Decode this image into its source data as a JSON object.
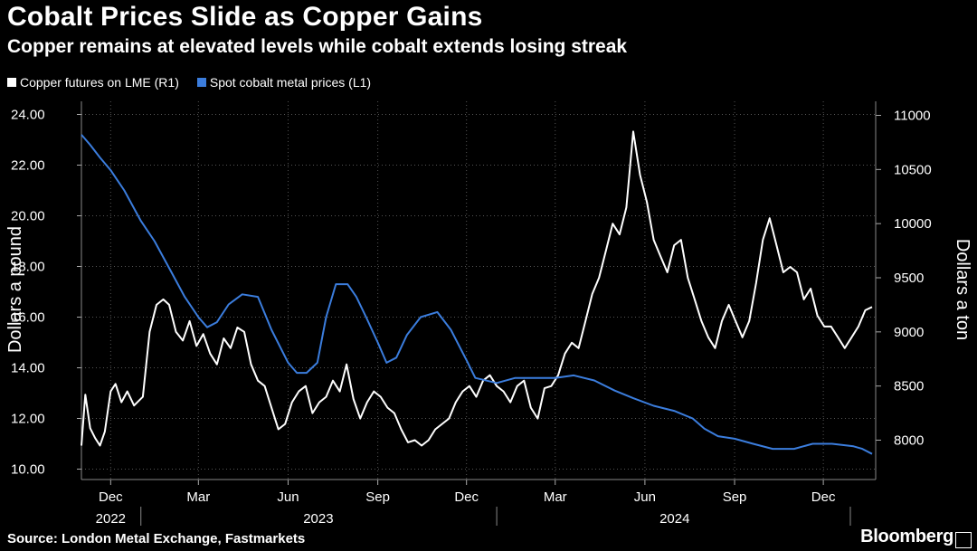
{
  "chart_data": {
    "type": "line",
    "title": "Cobalt Prices Slide as Copper Gains",
    "subtitle": "Copper remains at elevated levels while cobalt extends losing streak",
    "source": "Source: London Metal Exchange, Fastmarkets",
    "brand": "Bloomberg",
    "ylabel_left": "Dollars a pound",
    "ylabel_right": "Dollars a ton",
    "ylim_left": [
      10,
      24
    ],
    "yticks_left": [
      "10.00",
      "12.00",
      "14.00",
      "16.00",
      "18.00",
      "20.00",
      "22.00",
      "24.00"
    ],
    "ylim_right": [
      7800,
      11100
    ],
    "yticks_right": [
      "8000",
      "8500",
      "9000",
      "9500",
      "10000",
      "10500",
      "11000"
    ],
    "x_month_ticks": [
      {
        "label": "Dec",
        "date": "2022-12-01"
      },
      {
        "label": "Mar",
        "date": "2023-03-01"
      },
      {
        "label": "Jun",
        "date": "2023-06-01"
      },
      {
        "label": "Sep",
        "date": "2023-09-01"
      },
      {
        "label": "Dec",
        "date": "2023-12-01"
      },
      {
        "label": "Mar",
        "date": "2024-03-01"
      },
      {
        "label": "Jun",
        "date": "2024-06-01"
      },
      {
        "label": "Sep",
        "date": "2024-09-01"
      },
      {
        "label": "Dec",
        "date": "2024-12-01"
      }
    ],
    "x_year_ticks": [
      {
        "label": "2022",
        "date": "2022-11-01",
        "end": "2022-12-31"
      },
      {
        "label": "2023",
        "date": "2023-01-01",
        "end": "2023-12-31"
      },
      {
        "label": "2024",
        "date": "2024-01-01",
        "end": "2024-12-31"
      }
    ],
    "x_range": [
      "2022-11-01",
      "2025-01-20"
    ],
    "grid": true,
    "legend_position": "top-left",
    "series": [
      {
        "name": "Copper futures on LME (R1)",
        "axis": "right",
        "color": "#ffffff",
        "points": [
          [
            "2022-11-01",
            7950
          ],
          [
            "2022-11-05",
            8420
          ],
          [
            "2022-11-10",
            8110
          ],
          [
            "2022-11-15",
            8020
          ],
          [
            "2022-11-20",
            7950
          ],
          [
            "2022-11-25",
            8080
          ],
          [
            "2022-12-01",
            8450
          ],
          [
            "2022-12-06",
            8520
          ],
          [
            "2022-12-12",
            8350
          ],
          [
            "2022-12-18",
            8450
          ],
          [
            "2022-12-25",
            8320
          ],
          [
            "2023-01-03",
            8400
          ],
          [
            "2023-01-10",
            9000
          ],
          [
            "2023-01-17",
            9250
          ],
          [
            "2023-01-24",
            9300
          ],
          [
            "2023-01-30",
            9250
          ],
          [
            "2023-02-06",
            9000
          ],
          [
            "2023-02-13",
            8920
          ],
          [
            "2023-02-20",
            9100
          ],
          [
            "2023-02-27",
            8870
          ],
          [
            "2023-03-06",
            8980
          ],
          [
            "2023-03-13",
            8800
          ],
          [
            "2023-03-20",
            8700
          ],
          [
            "2023-03-27",
            8940
          ],
          [
            "2023-04-03",
            8850
          ],
          [
            "2023-04-10",
            9040
          ],
          [
            "2023-04-17",
            9000
          ],
          [
            "2023-04-24",
            8700
          ],
          [
            "2023-05-01",
            8550
          ],
          [
            "2023-05-08",
            8500
          ],
          [
            "2023-05-15",
            8300
          ],
          [
            "2023-05-22",
            8100
          ],
          [
            "2023-05-29",
            8150
          ],
          [
            "2023-06-05",
            8350
          ],
          [
            "2023-06-12",
            8450
          ],
          [
            "2023-06-19",
            8500
          ],
          [
            "2023-06-26",
            8250
          ],
          [
            "2023-07-03",
            8350
          ],
          [
            "2023-07-10",
            8400
          ],
          [
            "2023-07-17",
            8550
          ],
          [
            "2023-07-24",
            8450
          ],
          [
            "2023-07-31",
            8700
          ],
          [
            "2023-08-07",
            8380
          ],
          [
            "2023-08-14",
            8200
          ],
          [
            "2023-08-21",
            8350
          ],
          [
            "2023-08-28",
            8450
          ],
          [
            "2023-09-04",
            8400
          ],
          [
            "2023-09-11",
            8300
          ],
          [
            "2023-09-18",
            8250
          ],
          [
            "2023-09-25",
            8100
          ],
          [
            "2023-10-02",
            7980
          ],
          [
            "2023-10-09",
            8000
          ],
          [
            "2023-10-16",
            7950
          ],
          [
            "2023-10-23",
            8000
          ],
          [
            "2023-10-30",
            8100
          ],
          [
            "2023-11-06",
            8150
          ],
          [
            "2023-11-13",
            8200
          ],
          [
            "2023-11-20",
            8350
          ],
          [
            "2023-11-27",
            8450
          ],
          [
            "2023-12-04",
            8500
          ],
          [
            "2023-12-11",
            8400
          ],
          [
            "2023-12-18",
            8550
          ],
          [
            "2023-12-25",
            8600
          ],
          [
            "2024-01-01",
            8500
          ],
          [
            "2024-01-08",
            8450
          ],
          [
            "2024-01-15",
            8350
          ],
          [
            "2024-01-22",
            8500
          ],
          [
            "2024-01-29",
            8550
          ],
          [
            "2024-02-05",
            8300
          ],
          [
            "2024-02-12",
            8200
          ],
          [
            "2024-02-19",
            8480
          ],
          [
            "2024-02-26",
            8500
          ],
          [
            "2024-03-04",
            8600
          ],
          [
            "2024-03-11",
            8800
          ],
          [
            "2024-03-18",
            8900
          ],
          [
            "2024-03-25",
            8850
          ],
          [
            "2024-04-01",
            9100
          ],
          [
            "2024-04-08",
            9350
          ],
          [
            "2024-04-15",
            9500
          ],
          [
            "2024-04-22",
            9750
          ],
          [
            "2024-04-29",
            10000
          ],
          [
            "2024-05-06",
            9900
          ],
          [
            "2024-05-13",
            10150
          ],
          [
            "2024-05-20",
            10850
          ],
          [
            "2024-05-27",
            10450
          ],
          [
            "2024-06-03",
            10200
          ],
          [
            "2024-06-10",
            9850
          ],
          [
            "2024-06-17",
            9700
          ],
          [
            "2024-06-24",
            9550
          ],
          [
            "2024-07-01",
            9800
          ],
          [
            "2024-07-08",
            9850
          ],
          [
            "2024-07-15",
            9500
          ],
          [
            "2024-07-22",
            9300
          ],
          [
            "2024-07-29",
            9100
          ],
          [
            "2024-08-05",
            8950
          ],
          [
            "2024-08-12",
            8850
          ],
          [
            "2024-08-19",
            9100
          ],
          [
            "2024-08-26",
            9250
          ],
          [
            "2024-09-02",
            9100
          ],
          [
            "2024-09-09",
            8950
          ],
          [
            "2024-09-16",
            9100
          ],
          [
            "2024-09-23",
            9450
          ],
          [
            "2024-09-30",
            9850
          ],
          [
            "2024-10-07",
            10050
          ],
          [
            "2024-10-14",
            9800
          ],
          [
            "2024-10-21",
            9550
          ],
          [
            "2024-10-28",
            9600
          ],
          [
            "2024-11-04",
            9550
          ],
          [
            "2024-11-11",
            9300
          ],
          [
            "2024-11-18",
            9400
          ],
          [
            "2024-11-25",
            9150
          ],
          [
            "2024-12-02",
            9050
          ],
          [
            "2024-12-09",
            9050
          ],
          [
            "2024-12-16",
            8950
          ],
          [
            "2024-12-23",
            8850
          ],
          [
            "2024-12-30",
            8950
          ],
          [
            "2025-01-06",
            9050
          ],
          [
            "2025-01-13",
            9200
          ],
          [
            "2025-01-20",
            9230
          ]
        ]
      },
      {
        "name": "Spot cobalt metal prices (L1)",
        "axis": "left",
        "color": "#3b7ddd",
        "points": [
          [
            "2022-11-01",
            23.2
          ],
          [
            "2022-11-10",
            22.8
          ],
          [
            "2022-11-20",
            22.3
          ],
          [
            "2022-12-01",
            21.8
          ],
          [
            "2022-12-15",
            21.0
          ],
          [
            "2023-01-01",
            19.8
          ],
          [
            "2023-01-15",
            19.0
          ],
          [
            "2023-02-01",
            17.8
          ],
          [
            "2023-02-15",
            16.8
          ],
          [
            "2023-03-01",
            16.0
          ],
          [
            "2023-03-10",
            15.6
          ],
          [
            "2023-03-20",
            15.8
          ],
          [
            "2023-04-01",
            16.5
          ],
          [
            "2023-04-15",
            16.9
          ],
          [
            "2023-05-01",
            16.8
          ],
          [
            "2023-05-15",
            15.5
          ],
          [
            "2023-06-01",
            14.2
          ],
          [
            "2023-06-10",
            13.8
          ],
          [
            "2023-06-20",
            13.8
          ],
          [
            "2023-07-01",
            14.2
          ],
          [
            "2023-07-10",
            16.0
          ],
          [
            "2023-07-20",
            17.3
          ],
          [
            "2023-08-01",
            17.3
          ],
          [
            "2023-08-10",
            16.8
          ],
          [
            "2023-08-20",
            16.0
          ],
          [
            "2023-09-01",
            15.0
          ],
          [
            "2023-09-10",
            14.2
          ],
          [
            "2023-09-20",
            14.4
          ],
          [
            "2023-10-01",
            15.3
          ],
          [
            "2023-10-15",
            16.0
          ],
          [
            "2023-11-01",
            16.2
          ],
          [
            "2023-11-15",
            15.5
          ],
          [
            "2023-12-01",
            14.3
          ],
          [
            "2023-12-10",
            13.6
          ],
          [
            "2024-01-01",
            13.4
          ],
          [
            "2024-01-20",
            13.6
          ],
          [
            "2024-02-10",
            13.6
          ],
          [
            "2024-03-01",
            13.6
          ],
          [
            "2024-03-20",
            13.7
          ],
          [
            "2024-04-10",
            13.5
          ],
          [
            "2024-05-01",
            13.1
          ],
          [
            "2024-05-20",
            12.8
          ],
          [
            "2024-06-10",
            12.5
          ],
          [
            "2024-07-01",
            12.3
          ],
          [
            "2024-07-20",
            12.0
          ],
          [
            "2024-08-01",
            11.6
          ],
          [
            "2024-08-15",
            11.3
          ],
          [
            "2024-09-01",
            11.2
          ],
          [
            "2024-09-20",
            11.0
          ],
          [
            "2024-10-10",
            10.8
          ],
          [
            "2024-11-01",
            10.8
          ],
          [
            "2024-11-20",
            11.0
          ],
          [
            "2024-12-10",
            11.0
          ],
          [
            "2025-01-01",
            10.9
          ],
          [
            "2025-01-10",
            10.8
          ],
          [
            "2025-01-20",
            10.6
          ]
        ]
      }
    ]
  },
  "legend": {
    "copper_label": "Copper futures on LME (R1)",
    "cobalt_label": "Spot cobalt metal prices (L1)",
    "copper_color": "#ffffff",
    "cobalt_color": "#3b7ddd"
  }
}
